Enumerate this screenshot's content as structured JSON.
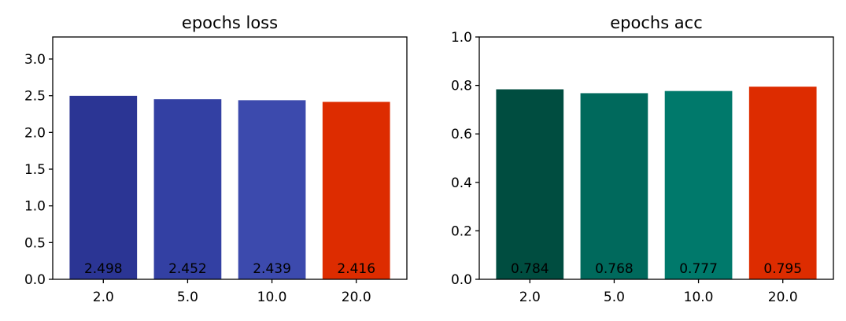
{
  "chart_data": [
    {
      "type": "bar",
      "title": "epochs loss",
      "xlabel": "",
      "ylabel": "",
      "categories": [
        "2.0",
        "5.0",
        "10.0",
        "20.0"
      ],
      "values": [
        2.498,
        2.452,
        2.439,
        2.416
      ],
      "value_labels": [
        "2.498",
        "2.452",
        "2.439",
        "2.416"
      ],
      "colors": [
        "#2b3594",
        "#3340a3",
        "#3c4aad",
        "#dd2c00"
      ],
      "ylim": [
        0,
        3.3
      ],
      "yticks": [
        0.0,
        0.5,
        1.0,
        1.5,
        2.0,
        2.5,
        3.0
      ],
      "ytick_labels": [
        "0.0",
        "0.5",
        "1.0",
        "1.5",
        "2.0",
        "2.5",
        "3.0"
      ],
      "grid": false,
      "legend": "none"
    },
    {
      "type": "bar",
      "title": "epochs acc",
      "xlabel": "",
      "ylabel": "",
      "categories": [
        "2.0",
        "5.0",
        "10.0",
        "20.0"
      ],
      "values": [
        0.784,
        0.768,
        0.777,
        0.795
      ],
      "value_labels": [
        "0.784",
        "0.768",
        "0.777",
        "0.795"
      ],
      "colors": [
        "#004d40",
        "#00695c",
        "#00796b",
        "#dd2c00"
      ],
      "ylim": [
        0,
        1.0
      ],
      "yticks": [
        0.0,
        0.2,
        0.4,
        0.6,
        0.8,
        1.0
      ],
      "ytick_labels": [
        "0.0",
        "0.2",
        "0.4",
        "0.6",
        "0.8",
        "1.0"
      ],
      "grid": false,
      "legend": "none"
    }
  ]
}
